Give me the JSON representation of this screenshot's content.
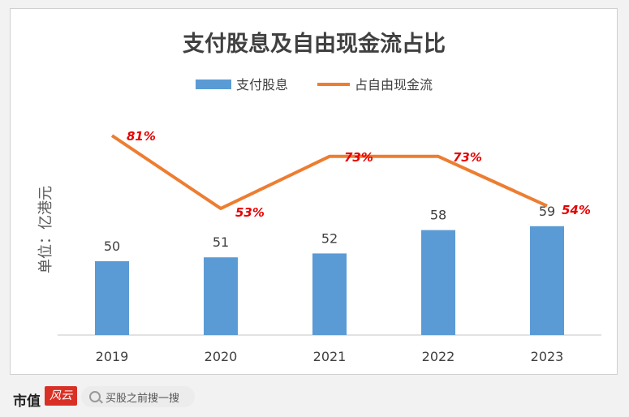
{
  "chart_data": {
    "type": "bar",
    "title": "支付股息及自由现金流占比",
    "ylabel": "单位：亿港元",
    "categories": [
      "2019",
      "2020",
      "2021",
      "2022",
      "2023"
    ],
    "series": [
      {
        "name": "支付股息",
        "kind": "bar",
        "values": [
          50,
          51,
          52,
          58,
          59
        ],
        "color": "#5b9bd5"
      },
      {
        "name": "占自由现金流",
        "kind": "line",
        "values": [
          81,
          53,
          73,
          73,
          54
        ],
        "labels": [
          "81%",
          "53%",
          "73%",
          "73%",
          "54%"
        ],
        "color": "#ed7d31"
      }
    ],
    "legend": "top",
    "grid": false
  },
  "footer": {
    "brand": "市值",
    "brand_mark": "风云",
    "search_placeholder": "买股之前搜一搜"
  }
}
